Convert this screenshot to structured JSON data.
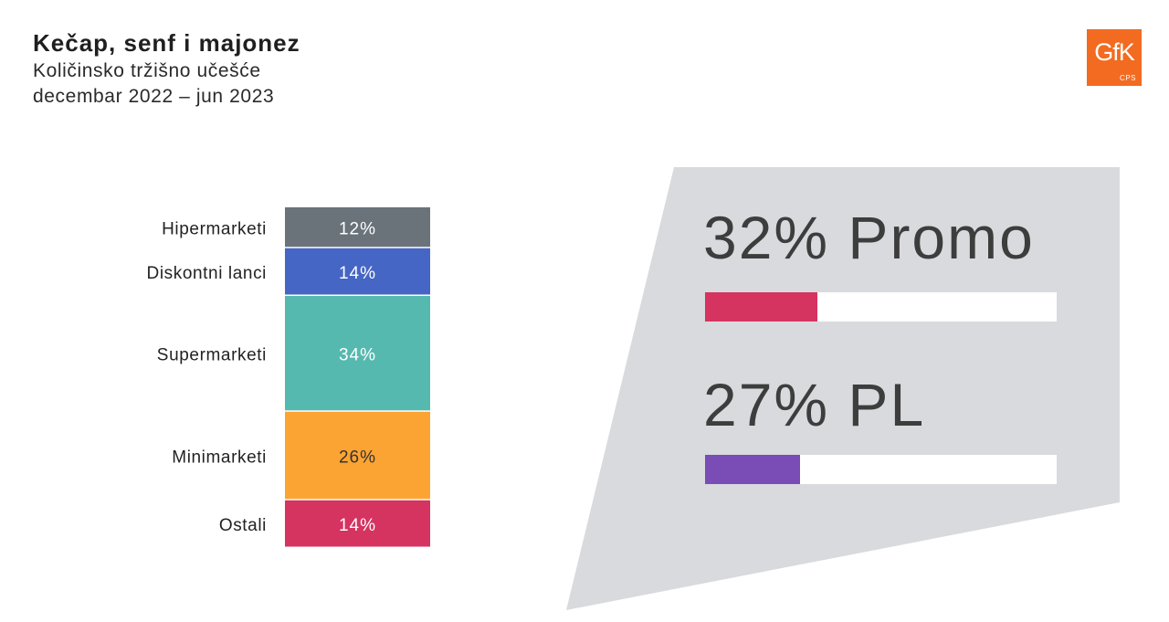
{
  "header": {
    "title": "Kečap, senf i majonez",
    "subtitle_line1": "Količinsko tržišno učešće",
    "subtitle_line2": "decembar 2022 – jun 2023"
  },
  "logo": {
    "text": "GfK",
    "sub": "CPS",
    "color": "#f26b21"
  },
  "chart_data": {
    "type": "bar",
    "stacked": true,
    "categories": [
      "Hipermarketi",
      "Diskontni lanci",
      "Supermarketi",
      "Minimarketi",
      "Ostali"
    ],
    "values": [
      12,
      14,
      34,
      26,
      14
    ],
    "value_labels": [
      "12%",
      "14%",
      "34%",
      "26%",
      "14%"
    ],
    "colors": [
      "#6a737a",
      "#4566c4",
      "#56b9b0",
      "#fca433",
      "#d53360"
    ],
    "label_colors": [
      "#ffffff",
      "#ffffff",
      "#ffffff",
      "#333333",
      "#ffffff"
    ]
  },
  "kpis": [
    {
      "text": "32% Promo",
      "value": 32,
      "color": "#d53360"
    },
    {
      "text": "27% PL",
      "value": 27,
      "color": "#7a4cb5"
    }
  ],
  "panel_color": "#d8dadd"
}
